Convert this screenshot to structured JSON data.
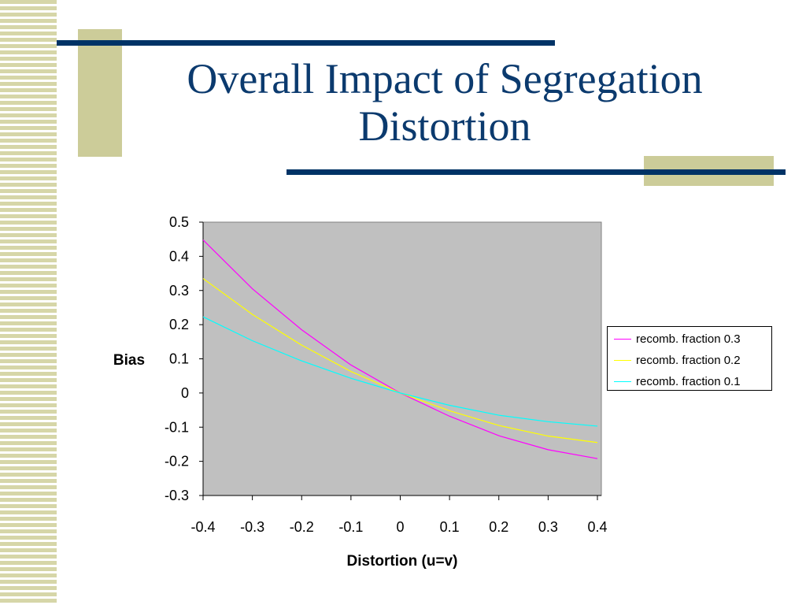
{
  "slide": {
    "title": "Overall Impact of Segregation Distortion",
    "colors": {
      "title": "#0b3a6e",
      "accent_bar": "#003366",
      "accent_block": "#cccc99",
      "plot_bg": "#c0c0c0"
    }
  },
  "chart_data": {
    "type": "line",
    "title": "",
    "xlabel": "Distortion (u=v)",
    "ylabel": "Bias",
    "xlim": [
      -0.4,
      0.4
    ],
    "ylim": [
      -0.3,
      0.5
    ],
    "x_ticks": [
      "-0.4",
      "-0.3",
      "-0.2",
      "-0.1",
      "0",
      "0.1",
      "0.2",
      "0.3",
      "0.4"
    ],
    "y_ticks": [
      "0.5",
      "0.4",
      "0.3",
      "0.2",
      "0.1",
      "0",
      "-0.1",
      "-0.2",
      "-0.3"
    ],
    "grid": false,
    "legend_position": "right",
    "x": [
      -0.4,
      -0.3,
      -0.2,
      -0.1,
      0,
      0.1,
      0.2,
      0.3,
      0.4
    ],
    "series": [
      {
        "name": "recomb. fraction 0.3",
        "color": "#ff00ff",
        "values": [
          0.448,
          0.305,
          0.185,
          0.082,
          0.0,
          -0.068,
          -0.125,
          -0.166,
          -0.192
        ]
      },
      {
        "name": "recomb. fraction 0.2",
        "color": "#ffff00",
        "values": [
          0.335,
          0.23,
          0.14,
          0.063,
          0.0,
          -0.052,
          -0.095,
          -0.126,
          -0.145
        ]
      },
      {
        "name": "recomb. fraction 0.1",
        "color": "#00ffff",
        "values": [
          0.223,
          0.153,
          0.094,
          0.043,
          0.0,
          -0.036,
          -0.065,
          -0.084,
          -0.097
        ]
      }
    ]
  }
}
